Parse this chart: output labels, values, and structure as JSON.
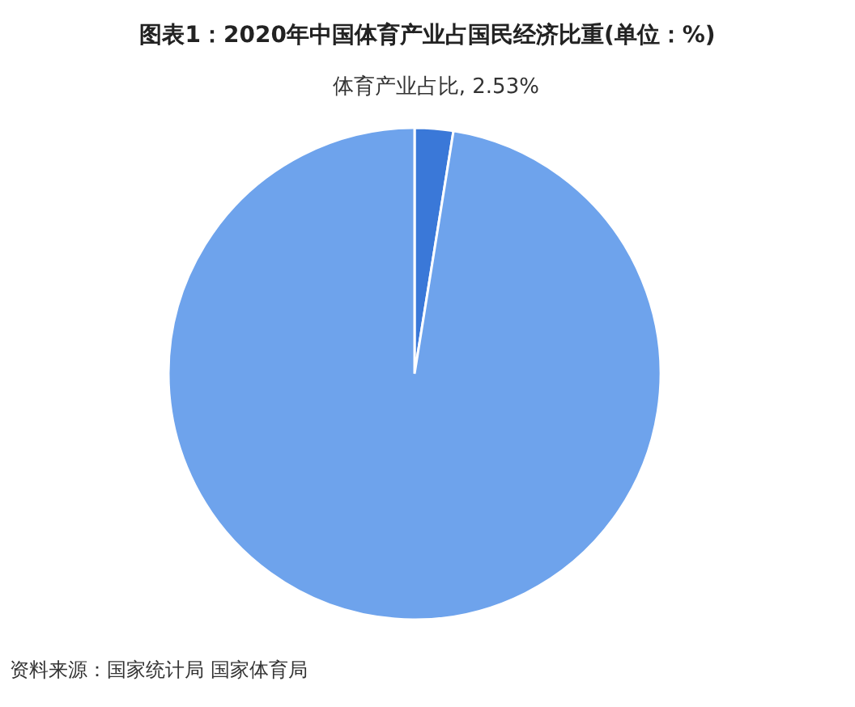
{
  "chart_data": {
    "type": "pie",
    "title": "图表1：2020年中国体育产业占国民经济比重(单位：%)",
    "categories": [
      "体育产业占比",
      null
    ],
    "values": [
      2.53,
      97.47
    ],
    "colors": [
      "#3a78d8",
      "#6ea3ec"
    ],
    "value_labels": [
      "2.53%",
      null
    ],
    "annotations": [
      "资料来源：国家统计局 国家体育局"
    ]
  }
}
